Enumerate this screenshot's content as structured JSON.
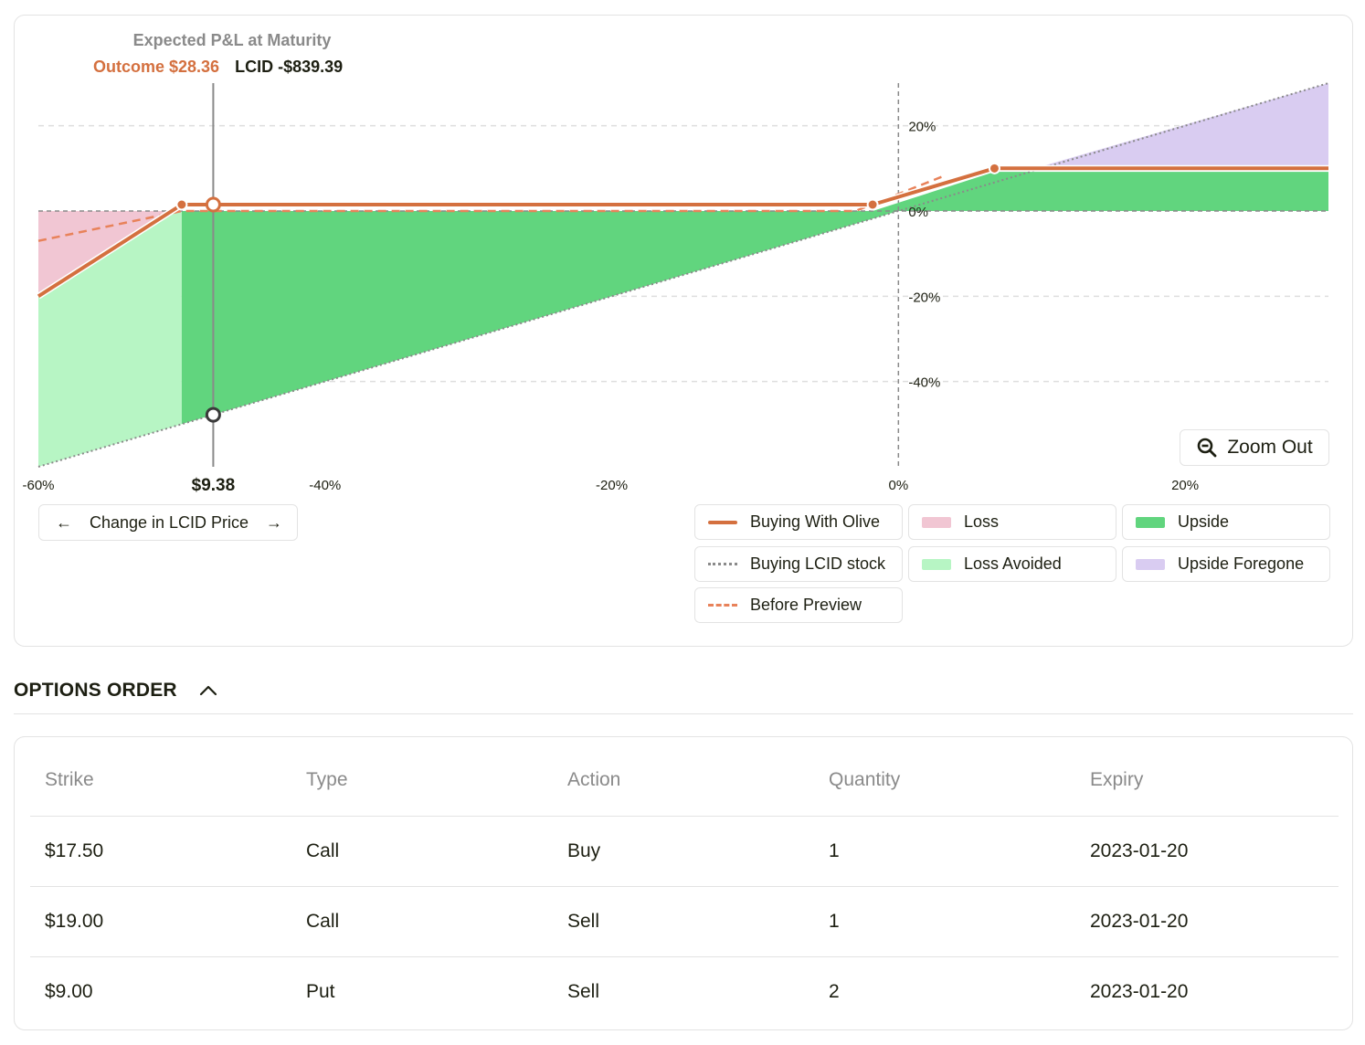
{
  "chart_header": {
    "title": "Expected P&L at Maturity",
    "outcome": "Outcome $28.36",
    "lcid": "LCID -$839.39"
  },
  "zoom_out_label": "Zoom Out",
  "price_nav": {
    "label": "Change in LCID Price",
    "left_arrow": "←",
    "right_arrow": "→"
  },
  "legend": [
    {
      "label": "Buying With Olive",
      "swatch": "line-solid",
      "color": "#d4703f"
    },
    {
      "label": "Loss",
      "swatch": "fill",
      "color": "#f1c6d3"
    },
    {
      "label": "Upside",
      "swatch": "fill",
      "color": "#61d57e"
    },
    {
      "label": "Buying LCID stock",
      "swatch": "line-dotted",
      "color": "#8a8a8a"
    },
    {
      "label": "Loss Avoided",
      "swatch": "fill",
      "color": "#b7f5c4"
    },
    {
      "label": "Upside Foregone",
      "swatch": "fill",
      "color": "#d9ccf1"
    },
    {
      "label": "Before Preview",
      "swatch": "line-dashed",
      "color": "#e8825a"
    }
  ],
  "colors": {
    "olive_line": "#d4703f",
    "before_preview": "#e8825a",
    "stock_line": "#8a8a8a",
    "loss": "#f1c6d3",
    "loss_avoided": "#b7f5c4",
    "upside": "#61d57e",
    "upside_foregone": "#d9ccf1"
  },
  "chart_data": {
    "type": "line",
    "xlabel": "Change in LCID Price",
    "xlim": [
      -60,
      30
    ],
    "ylim": [
      -60,
      30
    ],
    "x_ticks": [
      {
        "value": -60,
        "label": "-60%"
      },
      {
        "value": -40,
        "label": "-40%"
      },
      {
        "value": -20,
        "label": "-20%"
      },
      {
        "value": 0,
        "label": "0%"
      },
      {
        "value": 20,
        "label": "20%"
      }
    ],
    "y_ticks": [
      {
        "value": 20,
        "label": "20%"
      },
      {
        "value": 0,
        "label": "0%"
      },
      {
        "value": -20,
        "label": "-20%"
      },
      {
        "value": -40,
        "label": "-40%"
      }
    ],
    "grid": true,
    "zero_lines": true,
    "hover": {
      "x": -47.8,
      "label": "$9.38",
      "outcome_y": 1.5,
      "stock_y": -47.8
    },
    "series": [
      {
        "name": "Buying With Olive",
        "style": "solid",
        "points": [
          [
            -60,
            -20
          ],
          [
            -50,
            1.5
          ],
          [
            -1.8,
            1.5
          ],
          [
            6.7,
            10
          ],
          [
            30,
            10
          ]
        ],
        "markers": [
          [
            -50,
            1.5
          ],
          [
            -47.8,
            1.5
          ],
          [
            -1.8,
            1.5
          ],
          [
            6.7,
            10
          ]
        ]
      },
      {
        "name": "Buying LCID stock",
        "style": "dotted",
        "points": [
          [
            -60,
            -60
          ],
          [
            30,
            30
          ]
        ]
      },
      {
        "name": "Before Preview",
        "style": "dashed",
        "points": [
          [
            -60,
            -7
          ],
          [
            -50,
            0
          ],
          [
            -3,
            0
          ],
          [
            3,
            8
          ]
        ]
      }
    ]
  },
  "options_order": {
    "title": "OPTIONS ORDER",
    "columns": [
      "Strike",
      "Type",
      "Action",
      "Quantity",
      "Expiry"
    ],
    "rows": [
      [
        "$17.50",
        "Call",
        "Buy",
        "1",
        "2023-01-20"
      ],
      [
        "$19.00",
        "Call",
        "Sell",
        "1",
        "2023-01-20"
      ],
      [
        "$9.00",
        "Put",
        "Sell",
        "2",
        "2023-01-20"
      ]
    ]
  }
}
